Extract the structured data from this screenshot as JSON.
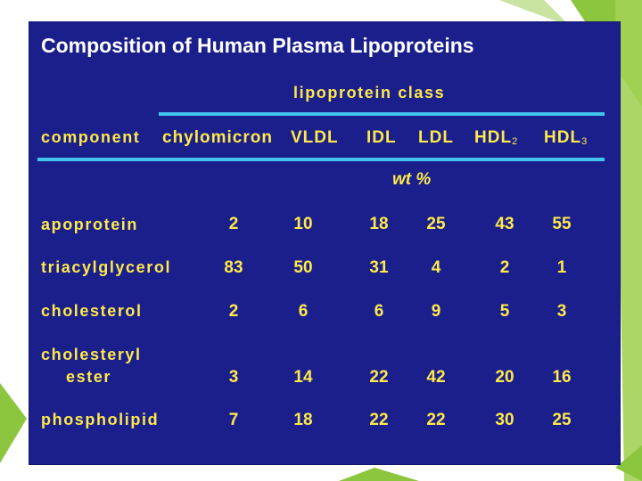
{
  "slide": {
    "title": "Composition of Human Plasma Lipoproteins",
    "class_header": "lipoprotein class",
    "component_header": "component",
    "columns": [
      {
        "label": "chylomicron",
        "sub": ""
      },
      {
        "label": "VLDL",
        "sub": ""
      },
      {
        "label": "IDL",
        "sub": ""
      },
      {
        "label": "LDL",
        "sub": ""
      },
      {
        "label": "HDL",
        "sub": "2"
      },
      {
        "label": "HDL",
        "sub": "3"
      }
    ],
    "unit": "wt %",
    "rows": [
      {
        "component": "apoprotein",
        "values": [
          "2",
          "10",
          "18",
          "25",
          "43",
          "55"
        ]
      },
      {
        "component": "triacylglycerol",
        "values": [
          "83",
          "50",
          "31",
          "4",
          "2",
          "1"
        ]
      },
      {
        "component": "cholesterol",
        "values": [
          "2",
          "6",
          "6",
          "9",
          "5",
          "3"
        ]
      },
      {
        "component_line1": "cholesteryl",
        "component_line2": "ester",
        "values": [
          "3",
          "14",
          "22",
          "42",
          "20",
          "16"
        ]
      },
      {
        "component": "phospholipid",
        "values": [
          "7",
          "18",
          "22",
          "22",
          "30",
          "25"
        ]
      }
    ],
    "colors": {
      "panel": "#1a1f8c",
      "text": "#ffe94a",
      "title": "#ffffff",
      "rule": "#43c4ee",
      "accent": "#8cc63f"
    }
  }
}
